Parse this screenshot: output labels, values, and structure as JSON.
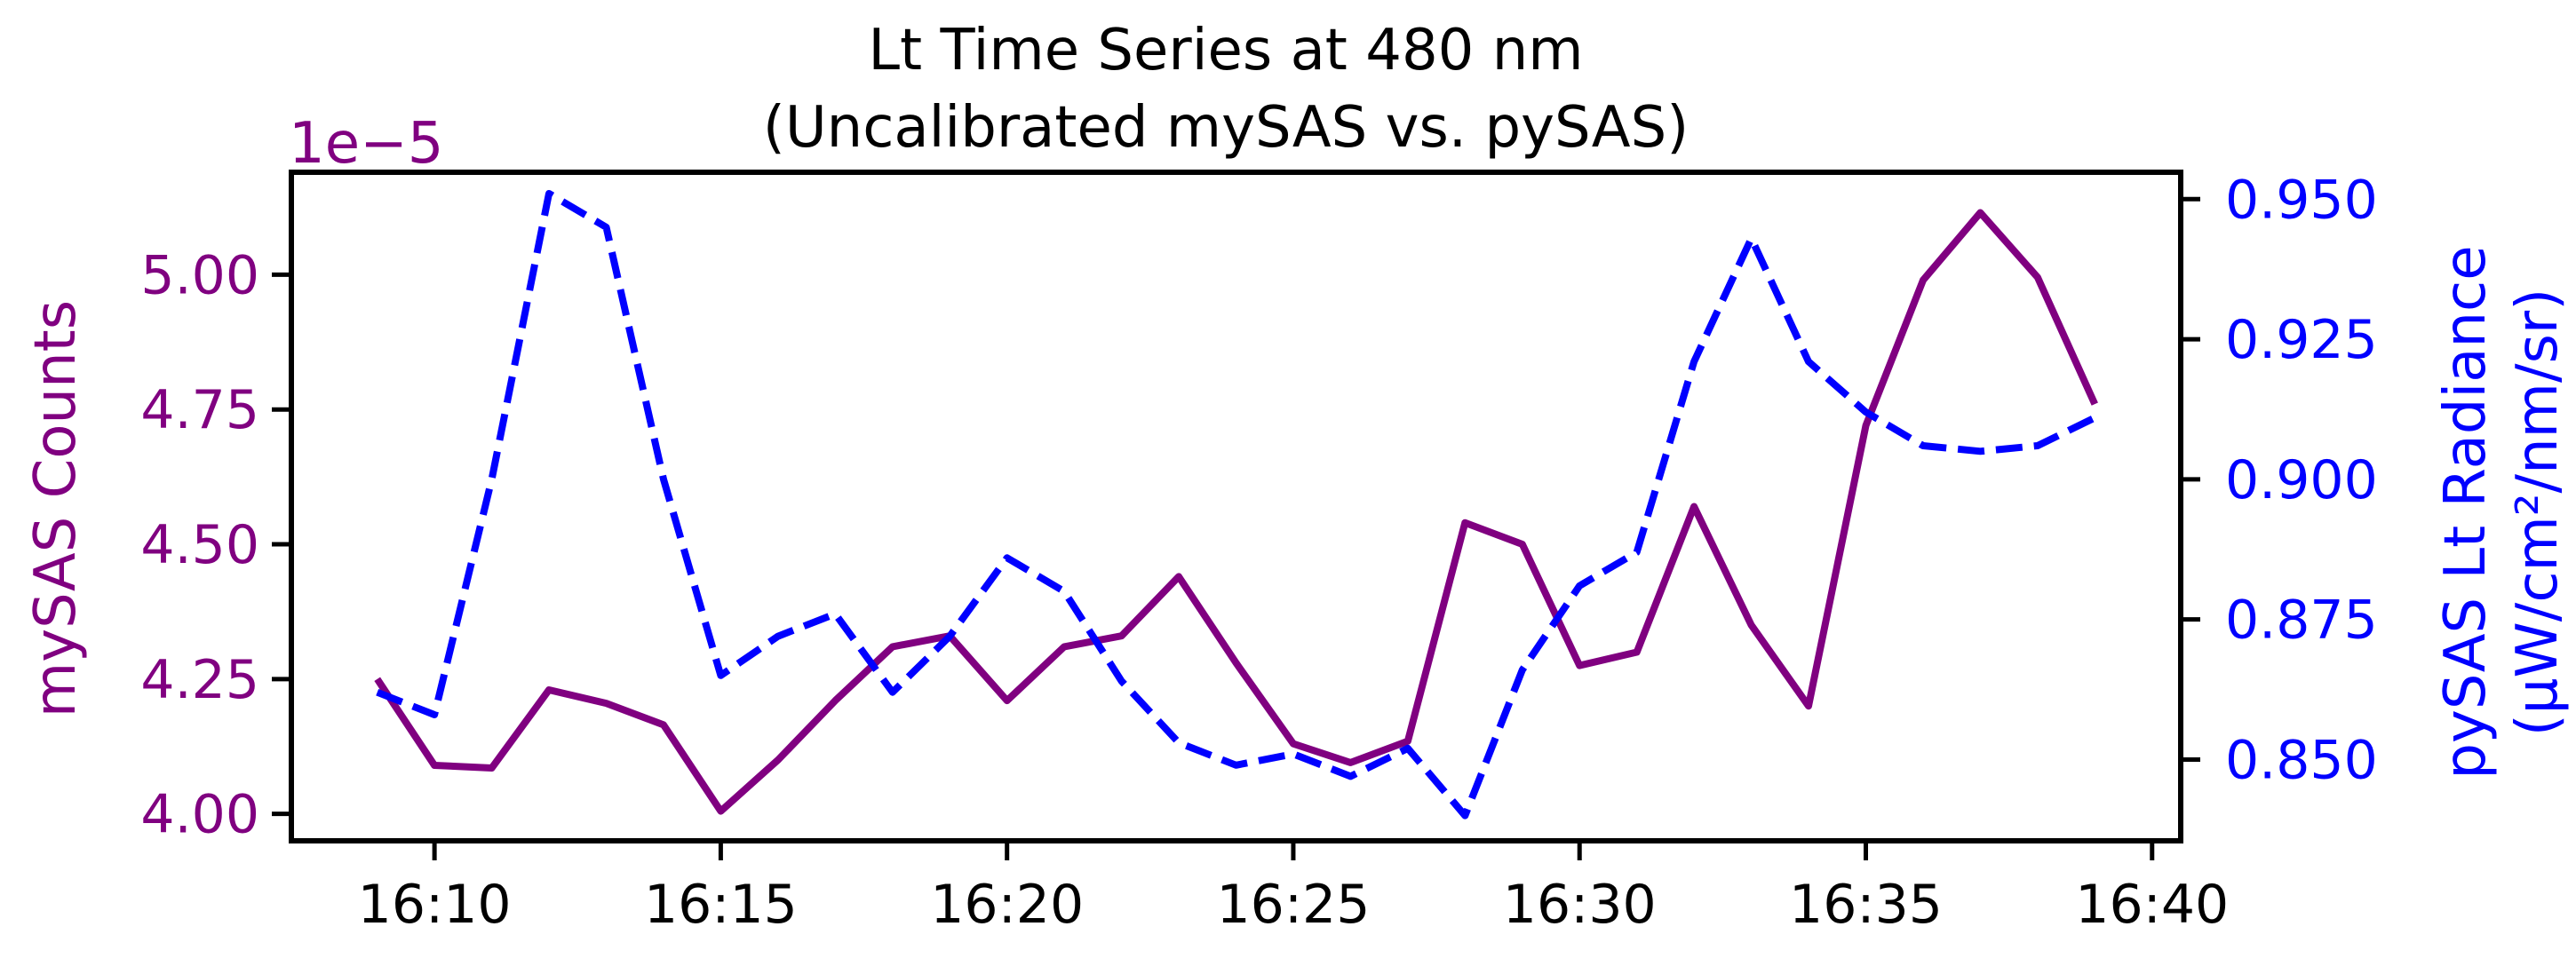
{
  "chart_data": {
    "type": "line",
    "title_line1": "Lt Time Series at 480 nm",
    "title_line2": "(Uncalibrated mySAS vs. pySAS)",
    "x": [
      "16:09",
      "16:10",
      "16:11",
      "16:12",
      "16:13",
      "16:14",
      "16:15",
      "16:16",
      "16:17",
      "16:18",
      "16:19",
      "16:20",
      "16:21",
      "16:22",
      "16:23",
      "16:24",
      "16:25",
      "16:26",
      "16:27",
      "16:28",
      "16:29",
      "16:30",
      "16:31",
      "16:32",
      "16:33",
      "16:34",
      "16:35",
      "16:36",
      "16:37",
      "16:38",
      "16:39"
    ],
    "x_ticks": [
      "16:10",
      "16:15",
      "16:20",
      "16:25",
      "16:30",
      "16:35",
      "16:40"
    ],
    "xlim": [
      "16:07:30",
      "16:40:30"
    ],
    "left_axis": {
      "label": "mySAS Counts",
      "offset_text": "1e−5",
      "color": "#800080",
      "ylim": [
        3.95,
        5.19
      ],
      "ticks": [
        4.0,
        4.25,
        4.5,
        4.75,
        5.0
      ],
      "tick_labels": [
        "4.00",
        "4.25",
        "4.50",
        "4.75",
        "5.00"
      ]
    },
    "right_axis": {
      "label_line1": "pySAS Lt Radiance",
      "label_line2": "(µW/cm²/nm/sr)",
      "color": "#0000ff",
      "ylim": [
        0.8355,
        0.9548
      ],
      "ticks": [
        0.85,
        0.875,
        0.9,
        0.925,
        0.95
      ],
      "tick_labels": [
        "0.850",
        "0.875",
        "0.900",
        "0.925",
        "0.950"
      ]
    },
    "series": [
      {
        "axis": "left",
        "color": "#800080",
        "style": "solid",
        "values": [
          4.25,
          4.09,
          4.085,
          4.23,
          4.205,
          4.165,
          4.005,
          4.1,
          4.21,
          4.31,
          4.33,
          4.21,
          4.31,
          4.33,
          4.44,
          4.28,
          4.13,
          4.095,
          4.135,
          4.54,
          4.5,
          4.275,
          4.3,
          4.57,
          4.35,
          4.2,
          4.72,
          4.99,
          5.115,
          4.995,
          4.76
        ]
      },
      {
        "axis": "right",
        "color": "#0000ff",
        "style": "dashed",
        "values": [
          0.862,
          0.858,
          0.9,
          0.951,
          0.945,
          0.9,
          0.865,
          0.872,
          0.876,
          0.862,
          0.872,
          0.886,
          0.88,
          0.864,
          0.853,
          0.849,
          0.851,
          0.847,
          0.852,
          0.84,
          0.866,
          0.881,
          0.887,
          0.921,
          0.943,
          0.921,
          0.912,
          0.906,
          0.905,
          0.906,
          0.911
        ]
      }
    ],
    "grid": false,
    "legend": "none"
  }
}
